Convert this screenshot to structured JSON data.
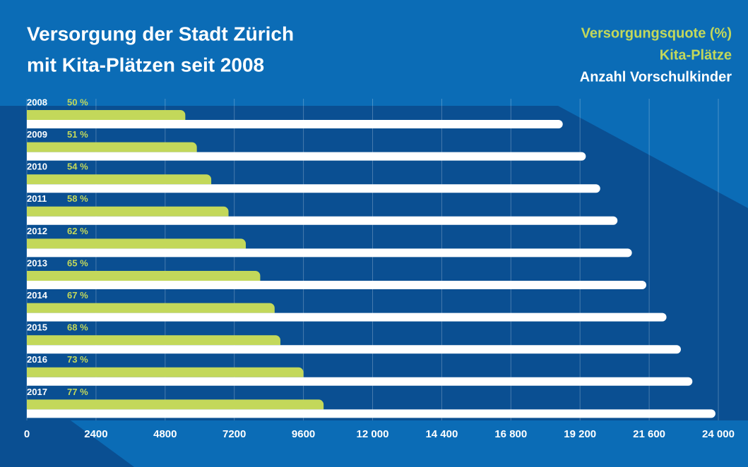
{
  "chart_data": {
    "type": "hbar",
    "title": [
      "Versorgung der Stadt Zürich",
      "mit Kita-Plätzen seit 2008"
    ],
    "categories": [
      "2008",
      "2009",
      "2010",
      "2011",
      "2012",
      "2013",
      "2014",
      "2015",
      "2016",
      "2017"
    ],
    "series": [
      {
        "name": "Versorgungsquote (%)",
        "color": "#c3d85a",
        "values": [
          50,
          51,
          54,
          58,
          62,
          65,
          67,
          68,
          73,
          77
        ],
        "value_labels": [
          "50 %",
          "51 %",
          "54 %",
          "58 %",
          "62 %",
          "65 %",
          "67 %",
          "68 %",
          "73 %",
          "77 %"
        ]
      },
      {
        "name": "Kita-Plätze",
        "color": "#c3d85a",
        "values": [
          5500,
          5900,
          6400,
          7000,
          7600,
          8100,
          8600,
          8800,
          9600,
          10300
        ]
      },
      {
        "name": "Anzahl Vorschulkinder",
        "color": "#ffffff",
        "values": [
          18600,
          19400,
          19900,
          20500,
          21000,
          21500,
          22200,
          22700,
          23100,
          23900
        ]
      }
    ],
    "xlim": [
      0,
      24000
    ],
    "xticks": [
      0,
      2400,
      4800,
      7200,
      9600,
      {
        "value": 12000,
        "label": "12 000"
      },
      {
        "value": 14400,
        "label": "14 400"
      },
      {
        "value": 16800,
        "label": "16 800"
      },
      {
        "value": 19200,
        "label": "19 200"
      },
      {
        "value": 21600,
        "label": "21 600"
      },
      {
        "value": 24000,
        "label": "24 000"
      }
    ],
    "grid": true
  }
}
